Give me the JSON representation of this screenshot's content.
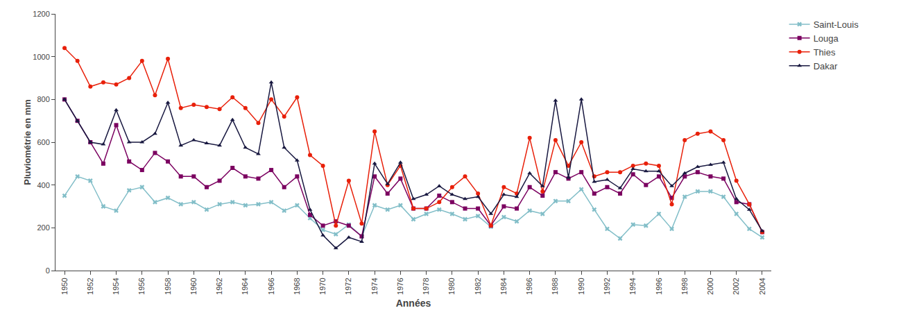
{
  "chart_data": {
    "type": "line",
    "xlabel": "Années",
    "ylabel": "Pluviométrie en mm",
    "x": [
      1950,
      1951,
      1952,
      1953,
      1954,
      1955,
      1956,
      1957,
      1958,
      1959,
      1960,
      1961,
      1962,
      1963,
      1964,
      1965,
      1966,
      1967,
      1968,
      1969,
      1970,
      1971,
      1972,
      1973,
      1974,
      1975,
      1976,
      1977,
      1978,
      1979,
      1980,
      1981,
      1982,
      1983,
      1984,
      1985,
      1986,
      1987,
      1988,
      1989,
      1990,
      1991,
      1992,
      1993,
      1994,
      1995,
      1996,
      1997,
      1998,
      1999,
      2000,
      2001,
      2002,
      2003,
      2004
    ],
    "series": [
      {
        "name": "Saint-Louis",
        "color": "#82bec8",
        "marker": "x",
        "values": [
          350,
          440,
          420,
          300,
          280,
          375,
          390,
          320,
          340,
          310,
          320,
          285,
          310,
          320,
          305,
          310,
          320,
          280,
          305,
          245,
          190,
          170,
          215,
          160,
          305,
          285,
          305,
          240,
          265,
          285,
          265,
          240,
          255,
          205,
          250,
          230,
          280,
          265,
          325,
          325,
          380,
          285,
          195,
          150,
          215,
          210,
          265,
          195,
          345,
          370,
          370,
          345,
          265,
          195,
          155
        ]
      },
      {
        "name": "Louga",
        "color": "#7b0060",
        "marker": "square",
        "values": [
          800,
          700,
          600,
          500,
          680,
          510,
          470,
          550,
          510,
          440,
          440,
          390,
          420,
          480,
          440,
          430,
          470,
          390,
          440,
          260,
          210,
          230,
          210,
          160,
          440,
          360,
          430,
          290,
          290,
          350,
          320,
          290,
          290,
          210,
          300,
          290,
          390,
          350,
          460,
          430,
          460,
          360,
          390,
          360,
          450,
          400,
          440,
          340,
          440,
          460,
          440,
          430,
          320,
          310,
          180
        ]
      },
      {
        "name": "Thies",
        "color": "#e8200a",
        "marker": "circle",
        "values": [
          1040,
          980,
          860,
          880,
          870,
          900,
          980,
          820,
          990,
          760,
          775,
          765,
          755,
          810,
          760,
          690,
          800,
          720,
          810,
          540,
          490,
          210,
          420,
          220,
          650,
          400,
          490,
          290,
          290,
          320,
          390,
          440,
          360,
          210,
          390,
          360,
          620,
          370,
          610,
          490,
          600,
          440,
          460,
          460,
          490,
          500,
          490,
          310,
          610,
          640,
          650,
          610,
          420,
          310,
          180
        ]
      },
      {
        "name": "Dakar",
        "color": "#181840",
        "marker": "triangle-up",
        "values": [
          800,
          700,
          600,
          590,
          750,
          600,
          600,
          640,
          785,
          585,
          610,
          595,
          585,
          705,
          575,
          545,
          880,
          575,
          515,
          285,
          165,
          105,
          155,
          135,
          500,
          405,
          505,
          335,
          355,
          395,
          355,
          335,
          345,
          265,
          355,
          345,
          455,
          395,
          795,
          435,
          800,
          415,
          425,
          385,
          475,
          465,
          465,
          395,
          455,
          485,
          495,
          505,
          335,
          285,
          185
        ]
      }
    ],
    "xlim": [
      1949.3,
      2004.7
    ],
    "xticks": [
      1950,
      1952,
      1954,
      1956,
      1958,
      1960,
      1962,
      1964,
      1966,
      1968,
      1970,
      1972,
      1974,
      1976,
      1978,
      1980,
      1982,
      1984,
      1986,
      1988,
      1990,
      1992,
      1994,
      1996,
      1998,
      2000,
      2002,
      2004
    ],
    "ylim": [
      0,
      1200
    ],
    "yticks": [
      0,
      200,
      400,
      600,
      800,
      1000,
      1200
    ],
    "grid": false,
    "legend": "right"
  }
}
